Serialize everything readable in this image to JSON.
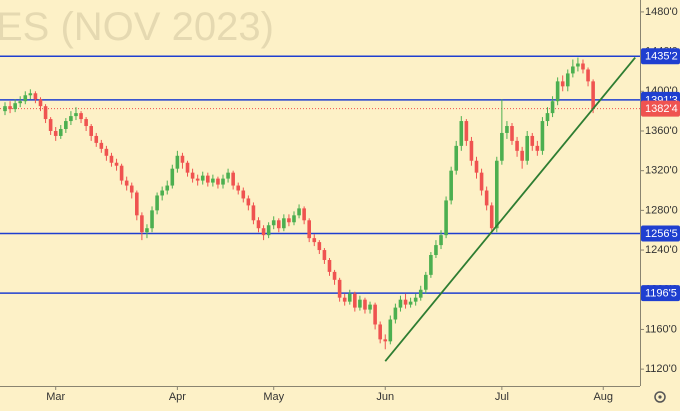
{
  "chart_data": {
    "type": "candlestick",
    "watermark": "ES (NOV 2023)",
    "categories": [
      null,
      null,
      null,
      null,
      null,
      null,
      null,
      null,
      null,
      null,
      "Mar",
      null,
      null,
      null,
      null,
      null,
      null,
      null,
      null,
      null,
      null,
      null,
      null,
      null,
      null,
      null,
      null,
      null,
      null,
      null,
      null,
      null,
      null,
      null,
      "Apr",
      null,
      null,
      null,
      null,
      null,
      null,
      null,
      null,
      null,
      null,
      null,
      null,
      null,
      null,
      null,
      null,
      null,
      null,
      "May",
      null,
      null,
      null,
      null,
      null,
      null,
      null,
      null,
      null,
      null,
      null,
      null,
      null,
      null,
      null,
      null,
      null,
      null,
      null,
      null,
      null,
      "Jun",
      null,
      null,
      null,
      null,
      null,
      null,
      null,
      null,
      null,
      null,
      null,
      null,
      null,
      null,
      null,
      null,
      null,
      null,
      null,
      null,
      null,
      null,
      "Jul",
      null,
      null,
      null,
      null,
      null,
      null,
      null,
      null,
      null,
      null,
      null,
      null,
      null,
      null,
      null,
      null,
      null,
      null,
      null,
      "Aug"
    ],
    "open": [
      1380,
      1385,
      1382,
      1388,
      1390,
      1396,
      1398,
      1392,
      1385,
      1372,
      1360,
      1355,
      1362,
      1370,
      1375,
      1378,
      1372,
      1365,
      1355,
      1348,
      1342,
      1335,
      1328,
      1325,
      1310,
      1305,
      1298,
      1275,
      1258,
      1262,
      1280,
      1295,
      1300,
      1305,
      1322,
      1335,
      1328,
      1318,
      1312,
      1310,
      1315,
      1308,
      1312,
      1306,
      1312,
      1318,
      1305,
      1300,
      1292,
      1285,
      1270,
      1262,
      1255,
      1265,
      1270,
      1262,
      1272,
      1268,
      1275,
      1282,
      1270,
      1252,
      1248,
      1240,
      1230,
      1218,
      1210,
      1192,
      1188,
      1196,
      1182,
      1190,
      1180,
      1185,
      1165,
      1150,
      1148,
      1170,
      1182,
      1190,
      1185,
      1188,
      1192,
      1200,
      1215,
      1235,
      1245,
      1255,
      1290,
      1320,
      1345,
      1370,
      1350,
      1330,
      1318,
      1300,
      1285,
      1262,
      1330,
      1358,
      1365,
      1350,
      1340,
      1330,
      1355,
      1345,
      1340,
      1370,
      1378,
      1390,
      1410,
      1405,
      1418,
      1425,
      1428,
      1422,
      1410,
      null,
      null
    ],
    "high": [
      1389,
      1390,
      1392,
      1395,
      1400,
      1402,
      1400,
      1394,
      1387,
      1374,
      1364,
      1366,
      1373,
      1380,
      1384,
      1380,
      1374,
      1367,
      1358,
      1351,
      1345,
      1338,
      1332,
      1327,
      1314,
      1308,
      1300,
      1278,
      1266,
      1284,
      1298,
      1304,
      1310,
      1326,
      1340,
      1338,
      1330,
      1322,
      1316,
      1319,
      1318,
      1316,
      1314,
      1316,
      1322,
      1320,
      1308,
      1303,
      1295,
      1288,
      1273,
      1265,
      1268,
      1274,
      1272,
      1276,
      1276,
      1279,
      1286,
      1284,
      1272,
      1256,
      1250,
      1242,
      1232,
      1220,
      1212,
      1196,
      1200,
      1198,
      1194,
      1192,
      1188,
      1187,
      1168,
      1155,
      1174,
      1186,
      1194,
      1196,
      1192,
      1196,
      1204,
      1218,
      1238,
      1250,
      1260,
      1294,
      1324,
      1350,
      1375,
      1372,
      1354,
      1334,
      1322,
      1304,
      1288,
      1334,
      1392,
      1370,
      1368,
      1354,
      1344,
      1360,
      1358,
      1350,
      1374,
      1384,
      1395,
      1414,
      1416,
      1422,
      1432,
      1434,
      1432,
      1424,
      1412,
      null,
      null
    ],
    "low": [
      1376,
      1378,
      1379,
      1384,
      1387,
      1392,
      1388,
      1380,
      1368,
      1356,
      1350,
      1352,
      1358,
      1366,
      1371,
      1368,
      1360,
      1350,
      1344,
      1338,
      1330,
      1324,
      1320,
      1306,
      1300,
      1292,
      1270,
      1250,
      1252,
      1258,
      1276,
      1290,
      1296,
      1302,
      1318,
      1322,
      1314,
      1308,
      1305,
      1306,
      1304,
      1304,
      1302,
      1302,
      1308,
      1301,
      1296,
      1288,
      1280,
      1266,
      1258,
      1250,
      1252,
      1261,
      1258,
      1259,
      1264,
      1265,
      1272,
      1266,
      1248,
      1244,
      1236,
      1226,
      1214,
      1205,
      1188,
      1184,
      1185,
      1178,
      1179,
      1176,
      1176,
      1160,
      1146,
      1140,
      1145,
      1166,
      1178,
      1181,
      1182,
      1184,
      1189,
      1196,
      1212,
      1232,
      1241,
      1252,
      1286,
      1316,
      1340,
      1345,
      1325,
      1312,
      1295,
      1280,
      1258,
      1258,
      1326,
      1352,
      1346,
      1334,
      1322,
      1326,
      1340,
      1335,
      1336,
      1365,
      1374,
      1386,
      1400,
      1400,
      1414,
      1420,
      1418,
      1405,
      1378,
      null,
      null
    ],
    "close": [
      1385,
      1382,
      1388,
      1390,
      1396,
      1398,
      1392,
      1385,
      1372,
      1360,
      1355,
      1362,
      1370,
      1375,
      1378,
      1372,
      1365,
      1355,
      1348,
      1342,
      1335,
      1328,
      1325,
      1310,
      1305,
      1298,
      1275,
      1258,
      1262,
      1280,
      1295,
      1300,
      1305,
      1322,
      1335,
      1328,
      1318,
      1312,
      1310,
      1315,
      1308,
      1312,
      1306,
      1312,
      1318,
      1305,
      1300,
      1292,
      1285,
      1270,
      1262,
      1255,
      1265,
      1270,
      1262,
      1272,
      1268,
      1275,
      1282,
      1270,
      1252,
      1248,
      1240,
      1230,
      1218,
      1210,
      1192,
      1188,
      1196,
      1182,
      1190,
      1180,
      1185,
      1165,
      1150,
      1148,
      1170,
      1182,
      1190,
      1185,
      1188,
      1192,
      1200,
      1215,
      1235,
      1245,
      1255,
      1290,
      1320,
      1345,
      1370,
      1350,
      1330,
      1318,
      1300,
      1285,
      1262,
      1330,
      1358,
      1365,
      1350,
      1340,
      1330,
      1355,
      1345,
      1340,
      1370,
      1378,
      1390,
      1410,
      1405,
      1418,
      1425,
      1428,
      1422,
      1410,
      1382.5,
      null,
      null
    ],
    "up_color": "#4caf50",
    "down_color": "#ef5350",
    "ylim": [
      1104,
      1492
    ],
    "yticks": [
      {
        "value": 1120,
        "label": "1120'0"
      },
      {
        "value": 1160,
        "label": "1160'0"
      },
      {
        "value": 1200,
        "label": "1200'0"
      },
      {
        "value": 1240,
        "label": "1240'0"
      },
      {
        "value": 1280,
        "label": "1280'0"
      },
      {
        "value": 1320,
        "label": "1320'0"
      },
      {
        "value": 1360,
        "label": "1360'0"
      },
      {
        "value": 1400,
        "label": "1400'0"
      },
      {
        "value": 1440,
        "label": "1440'0"
      },
      {
        "value": 1480,
        "label": "1480'0"
      }
    ],
    "levels": [
      {
        "value": 1435.25,
        "label": "1435'2"
      },
      {
        "value": 1391.375,
        "label": "1391'3"
      },
      {
        "value": 1256.625,
        "label": "1256'5"
      },
      {
        "value": 1196.625,
        "label": "1196'5"
      }
    ],
    "level_color": "#1f3fd0",
    "last_price": {
      "value": 1382.5,
      "label": "1382'4"
    },
    "trendline": {
      "x": [
        75,
        124.3
      ],
      "y": [
        1128,
        1434
      ],
      "color": "#2e7d32"
    }
  }
}
